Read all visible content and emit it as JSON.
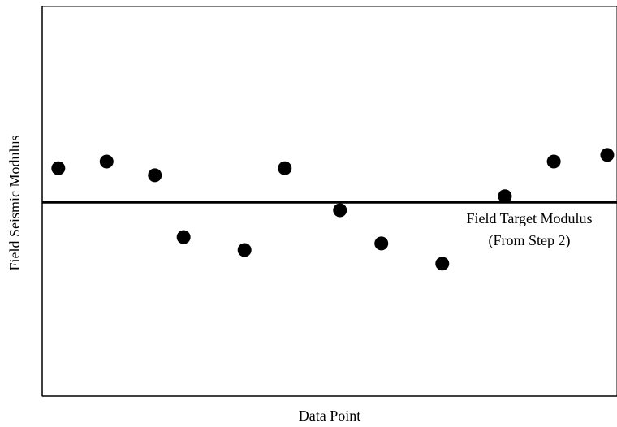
{
  "chart_data": {
    "type": "scatter",
    "x_label": "Data Point",
    "y_label": "Field Seismic Modulus",
    "x": [
      2.8,
      11.2,
      19.6,
      24.6,
      35.2,
      42.2,
      51.8,
      59.0,
      69.6,
      80.5,
      89.0,
      98.3
    ],
    "values": [
      58.5,
      60.2,
      56.7,
      40.8,
      37.5,
      58.5,
      47.7,
      39.2,
      34.0,
      51.3,
      60.2,
      61.9
    ],
    "color": "#000000",
    "xlim": [
      0,
      100
    ],
    "ylim": [
      0,
      100
    ],
    "reference_line": {
      "value": 49.8,
      "label": [
        "Field Target Modulus",
        "(From Step 2)"
      ]
    }
  }
}
